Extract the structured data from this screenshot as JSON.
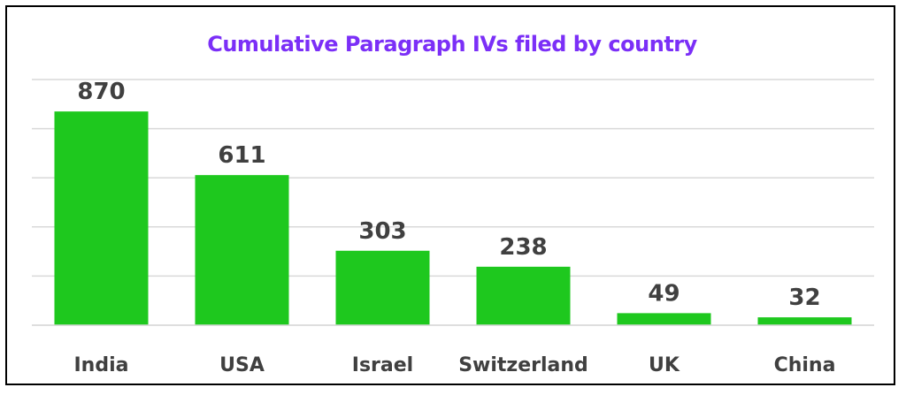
{
  "chart_data": {
    "type": "bar",
    "title": "Cumulative Paragraph IVs filed by country",
    "categories": [
      "India",
      "USA",
      "Israel",
      "Switzerland",
      "UK",
      "China"
    ],
    "values": [
      870,
      611,
      303,
      238,
      49,
      32
    ],
    "xlabel": "",
    "ylabel": "",
    "ylim": [
      0,
      1000
    ],
    "grid": true,
    "legend": "none",
    "data_labels": true,
    "colors": {
      "bar": "#1ec81e",
      "title": "#7b2ff7",
      "labels": "#404040",
      "grid": "#d9d9d9",
      "frame": "#000000"
    }
  }
}
